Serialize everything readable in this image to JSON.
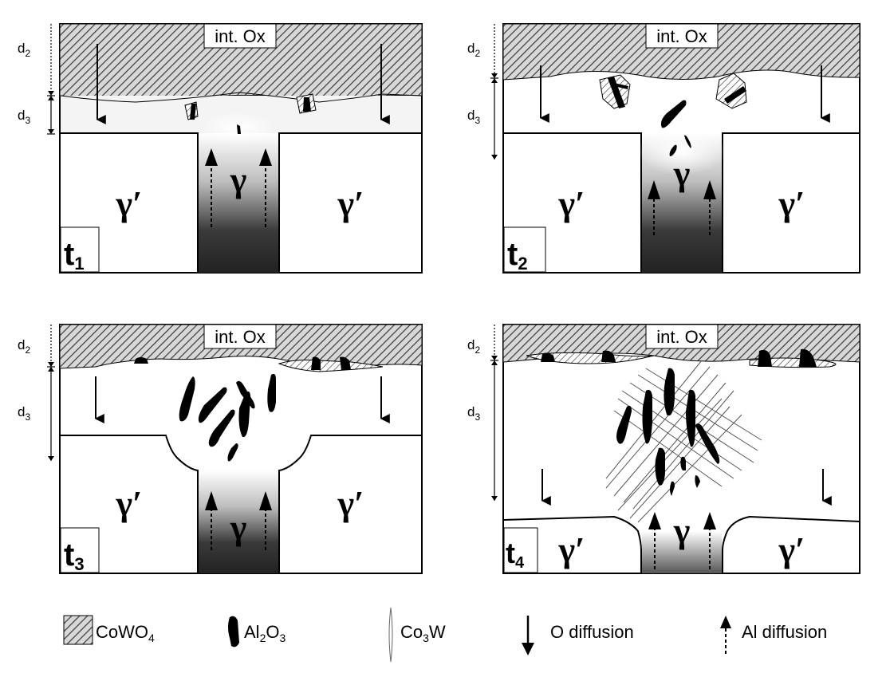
{
  "labels": {
    "int_ox": "int. Ox",
    "d": "d",
    "sub2": "2",
    "sub3": "3",
    "gamma_prime": "γ′",
    "gamma": "γ",
    "t": "t",
    "t1": "1",
    "t2": "2",
    "t3": "3",
    "t4": "4"
  },
  "legend": {
    "cowo4_main": "CoWO",
    "cowo4_sub": "4",
    "al2o3_a": "Al",
    "al2o3_b": "2",
    "al2o3_c": "O",
    "al2o3_d": "3",
    "co3w_a": "Co",
    "co3w_b": "3",
    "co3w_c": "W",
    "o_diffusion": "O diffusion",
    "al_diffusion": "Al diffusion"
  },
  "colors": {
    "oxide_hatch": "#555555",
    "gamma_dark": "#2a2a2a",
    "outline": "#000000"
  }
}
